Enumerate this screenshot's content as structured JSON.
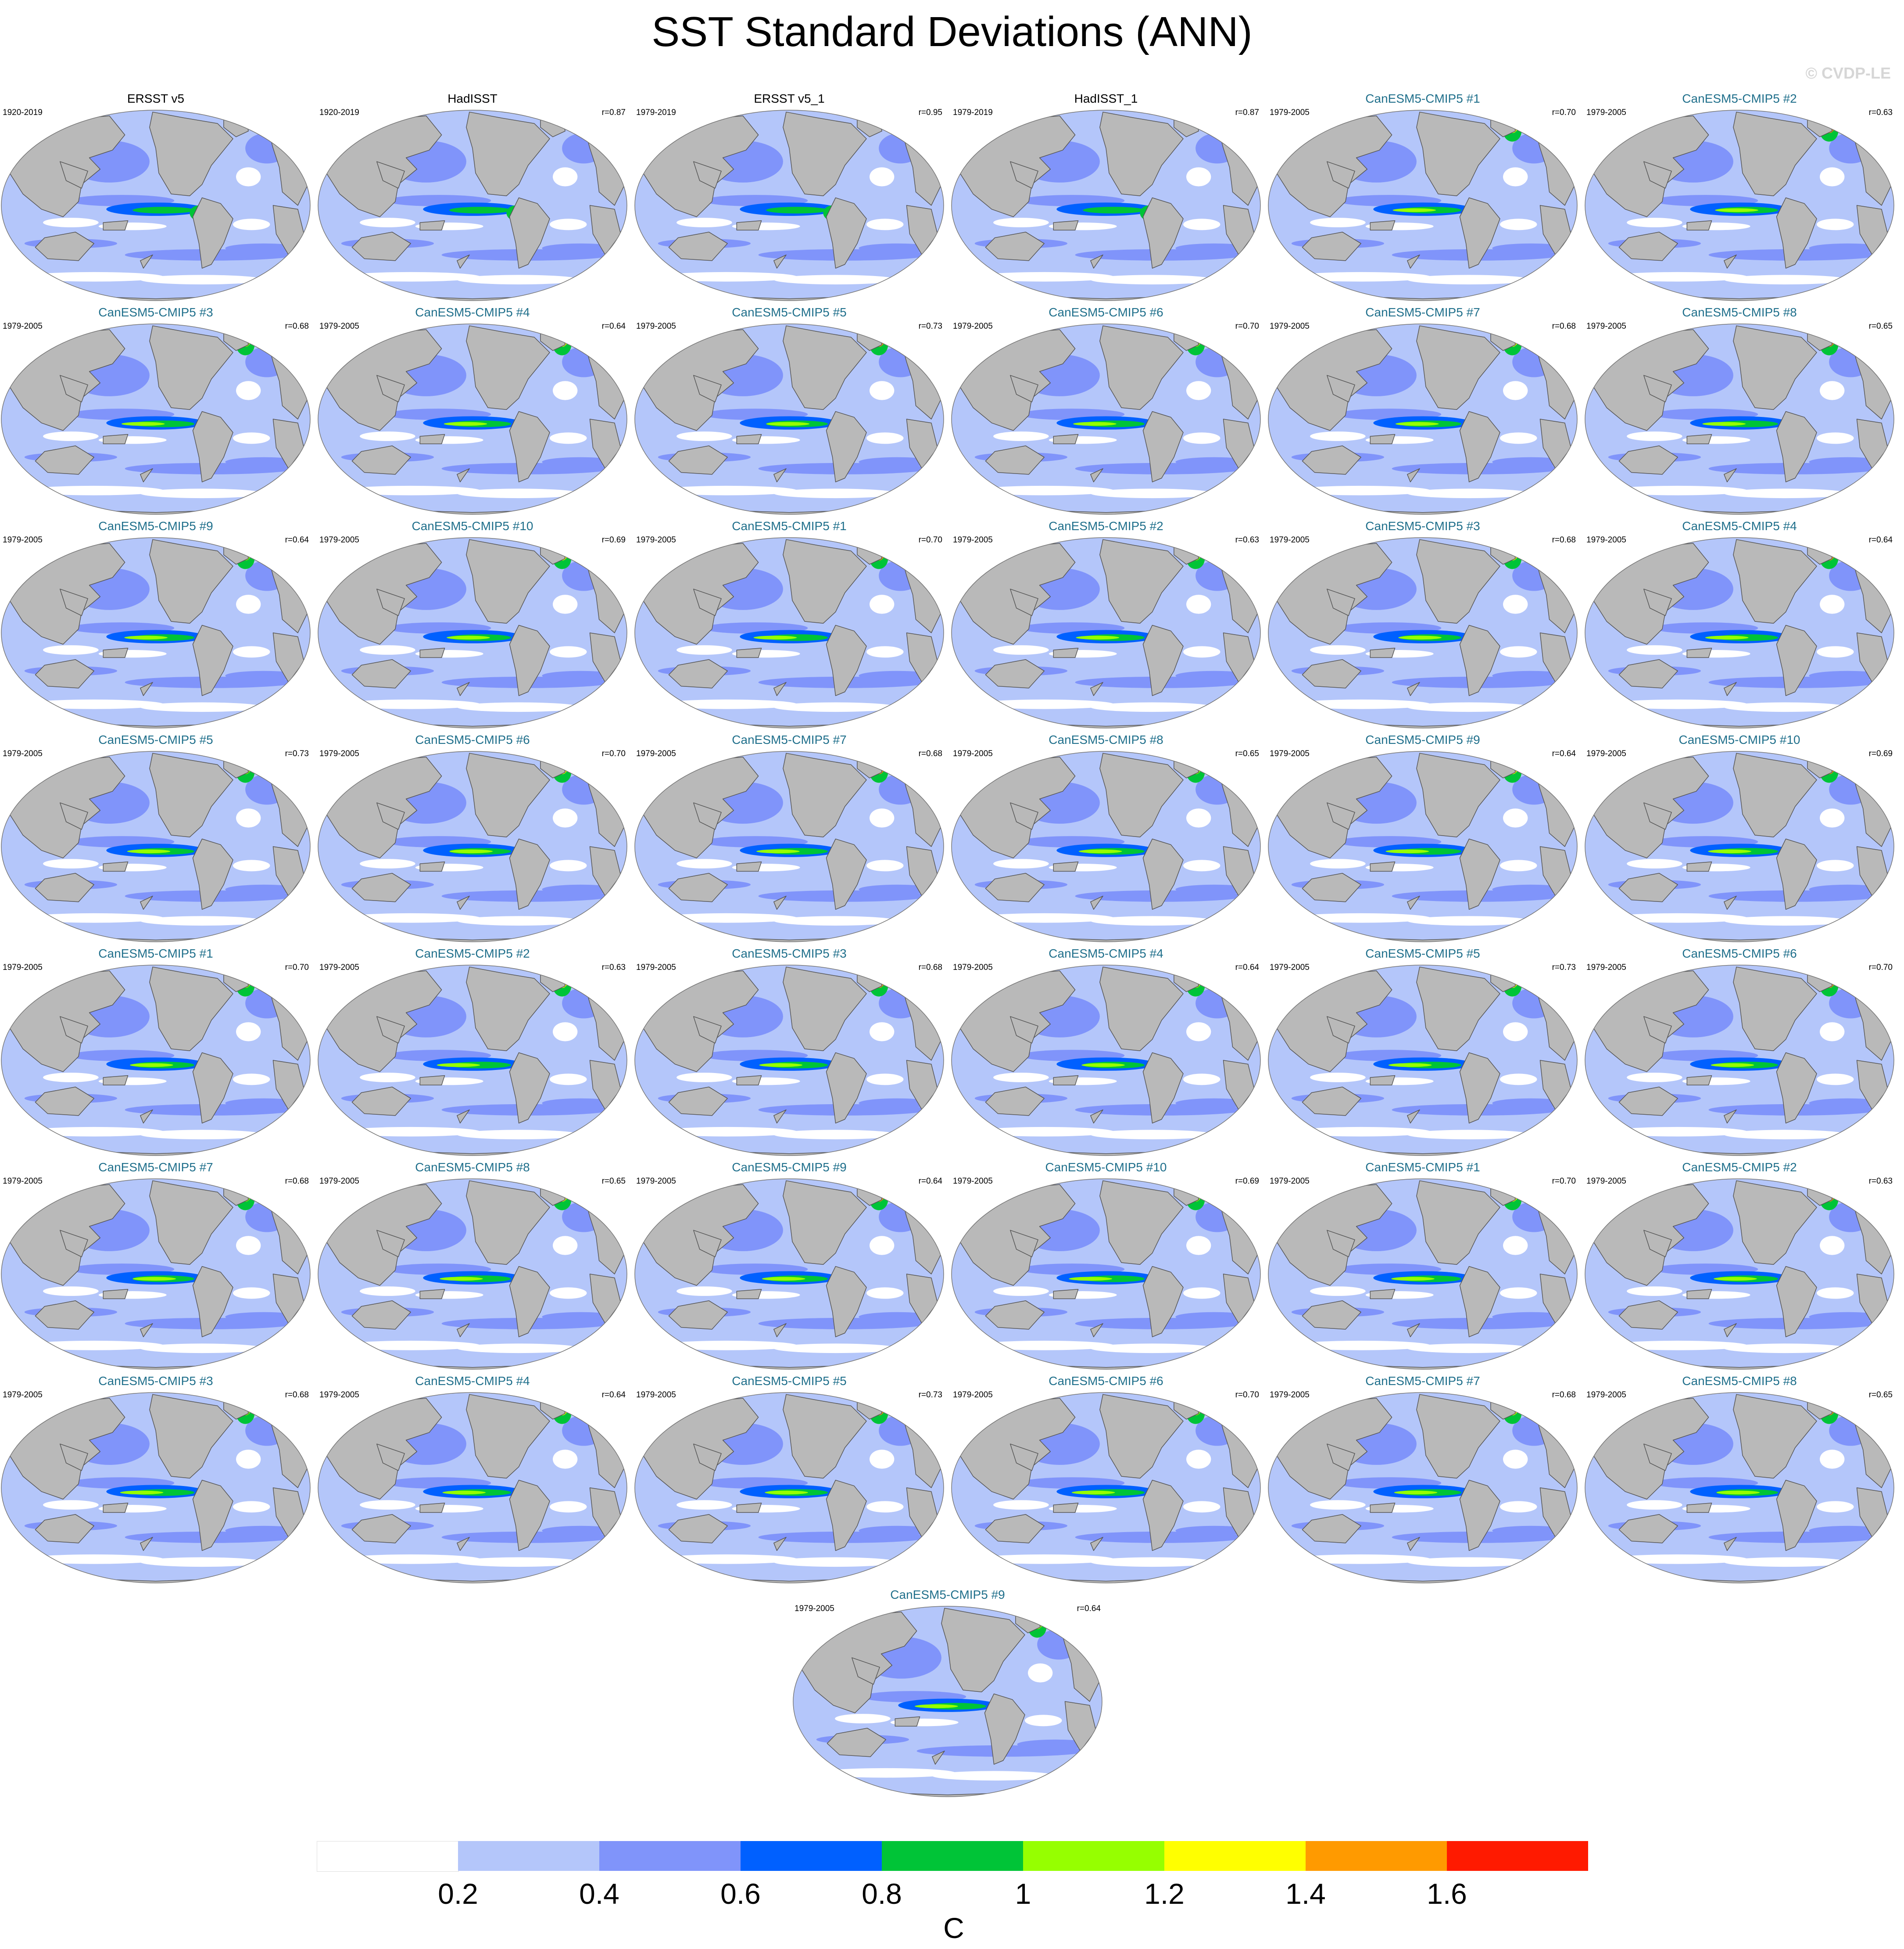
{
  "title": "SST Standard Deviations (ANN)",
  "watermark": "© CVDP-LE",
  "colors": {
    "land": "#b9b9b9",
    "coast": "#555555",
    "model_title": "#1f6f8b",
    "obs_title": "#000000"
  },
  "panels": [
    {
      "title": "ERSST v5",
      "period": "1920-2019",
      "corr": "",
      "kind": "obs"
    },
    {
      "title": "HadISST",
      "period": "1920-2019",
      "corr": "r=0.87",
      "kind": "obs"
    },
    {
      "title": "ERSST v5_1",
      "period": "1979-2019",
      "corr": "r=0.95",
      "kind": "obs"
    },
    {
      "title": "HadISST_1",
      "period": "1979-2019",
      "corr": "r=0.87",
      "kind": "obs"
    },
    {
      "title": "CanESM5-CMIP5 #1",
      "period": "1979-2005",
      "corr": "r=0.70",
      "kind": "model"
    },
    {
      "title": "CanESM5-CMIP5 #2",
      "period": "1979-2005",
      "corr": "r=0.63",
      "kind": "model"
    },
    {
      "title": "CanESM5-CMIP5 #3",
      "period": "1979-2005",
      "corr": "r=0.68",
      "kind": "model"
    },
    {
      "title": "CanESM5-CMIP5 #4",
      "period": "1979-2005",
      "corr": "r=0.64",
      "kind": "model"
    },
    {
      "title": "CanESM5-CMIP5 #5",
      "period": "1979-2005",
      "corr": "r=0.73",
      "kind": "model"
    },
    {
      "title": "CanESM5-CMIP5 #6",
      "period": "1979-2005",
      "corr": "r=0.70",
      "kind": "model"
    },
    {
      "title": "CanESM5-CMIP5 #7",
      "period": "1979-2005",
      "corr": "r=0.68",
      "kind": "model"
    },
    {
      "title": "CanESM5-CMIP5 #8",
      "period": "1979-2005",
      "corr": "r=0.65",
      "kind": "model"
    },
    {
      "title": "CanESM5-CMIP5 #9",
      "period": "1979-2005",
      "corr": "r=0.64",
      "kind": "model"
    },
    {
      "title": "CanESM5-CMIP5 #10",
      "period": "1979-2005",
      "corr": "r=0.69",
      "kind": "model"
    },
    {
      "title": "CanESM5-CMIP5 #1",
      "period": "1979-2005",
      "corr": "r=0.70",
      "kind": "model"
    },
    {
      "title": "CanESM5-CMIP5 #2",
      "period": "1979-2005",
      "corr": "r=0.63",
      "kind": "model"
    },
    {
      "title": "CanESM5-CMIP5 #3",
      "period": "1979-2005",
      "corr": "r=0.68",
      "kind": "model"
    },
    {
      "title": "CanESM5-CMIP5 #4",
      "period": "1979-2005",
      "corr": "r=0.64",
      "kind": "model"
    },
    {
      "title": "CanESM5-CMIP5 #5",
      "period": "1979-2005",
      "corr": "r=0.73",
      "kind": "model"
    },
    {
      "title": "CanESM5-CMIP5 #6",
      "period": "1979-2005",
      "corr": "r=0.70",
      "kind": "model"
    },
    {
      "title": "CanESM5-CMIP5 #7",
      "period": "1979-2005",
      "corr": "r=0.68",
      "kind": "model"
    },
    {
      "title": "CanESM5-CMIP5 #8",
      "period": "1979-2005",
      "corr": "r=0.65",
      "kind": "model"
    },
    {
      "title": "CanESM5-CMIP5 #9",
      "period": "1979-2005",
      "corr": "r=0.64",
      "kind": "model"
    },
    {
      "title": "CanESM5-CMIP5 #10",
      "period": "1979-2005",
      "corr": "r=0.69",
      "kind": "model"
    },
    {
      "title": "CanESM5-CMIP5 #1",
      "period": "1979-2005",
      "corr": "r=0.70",
      "kind": "model"
    },
    {
      "title": "CanESM5-CMIP5 #2",
      "period": "1979-2005",
      "corr": "r=0.63",
      "kind": "model"
    },
    {
      "title": "CanESM5-CMIP5 #3",
      "period": "1979-2005",
      "corr": "r=0.68",
      "kind": "model"
    },
    {
      "title": "CanESM5-CMIP5 #4",
      "period": "1979-2005",
      "corr": "r=0.64",
      "kind": "model"
    },
    {
      "title": "CanESM5-CMIP5 #5",
      "period": "1979-2005",
      "corr": "r=0.73",
      "kind": "model"
    },
    {
      "title": "CanESM5-CMIP5 #6",
      "period": "1979-2005",
      "corr": "r=0.70",
      "kind": "model"
    },
    {
      "title": "CanESM5-CMIP5 #7",
      "period": "1979-2005",
      "corr": "r=0.68",
      "kind": "model"
    },
    {
      "title": "CanESM5-CMIP5 #8",
      "period": "1979-2005",
      "corr": "r=0.65",
      "kind": "model"
    },
    {
      "title": "CanESM5-CMIP5 #9",
      "period": "1979-2005",
      "corr": "r=0.64",
      "kind": "model"
    },
    {
      "title": "CanESM5-CMIP5 #10",
      "period": "1979-2005",
      "corr": "r=0.69",
      "kind": "model"
    },
    {
      "title": "CanESM5-CMIP5 #1",
      "period": "1979-2005",
      "corr": "r=0.70",
      "kind": "model"
    },
    {
      "title": "CanESM5-CMIP5 #2",
      "period": "1979-2005",
      "corr": "r=0.63",
      "kind": "model"
    },
    {
      "title": "CanESM5-CMIP5 #3",
      "period": "1979-2005",
      "corr": "r=0.68",
      "kind": "model"
    },
    {
      "title": "CanESM5-CMIP5 #4",
      "period": "1979-2005",
      "corr": "r=0.64",
      "kind": "model"
    },
    {
      "title": "CanESM5-CMIP5 #5",
      "period": "1979-2005",
      "corr": "r=0.73",
      "kind": "model"
    },
    {
      "title": "CanESM5-CMIP5 #6",
      "period": "1979-2005",
      "corr": "r=0.70",
      "kind": "model"
    },
    {
      "title": "CanESM5-CMIP5 #7",
      "period": "1979-2005",
      "corr": "r=0.68",
      "kind": "model"
    },
    {
      "title": "CanESM5-CMIP5 #8",
      "period": "1979-2005",
      "corr": "r=0.65",
      "kind": "model"
    },
    {
      "title": "CanESM5-CMIP5 #9",
      "period": "1979-2005",
      "corr": "r=0.64",
      "kind": "model"
    }
  ],
  "colorbar": {
    "unit": "C",
    "ticks": [
      "0.2",
      "0.4",
      "0.6",
      "0.8",
      "1",
      "1.2",
      "1.4",
      "1.6"
    ],
    "colors": [
      "#ffffff",
      "#b4c6fa",
      "#8094fa",
      "#0060ff",
      "#00c437",
      "#96ff00",
      "#ffff00",
      "#ff9a00",
      "#ff1a00"
    ]
  }
}
